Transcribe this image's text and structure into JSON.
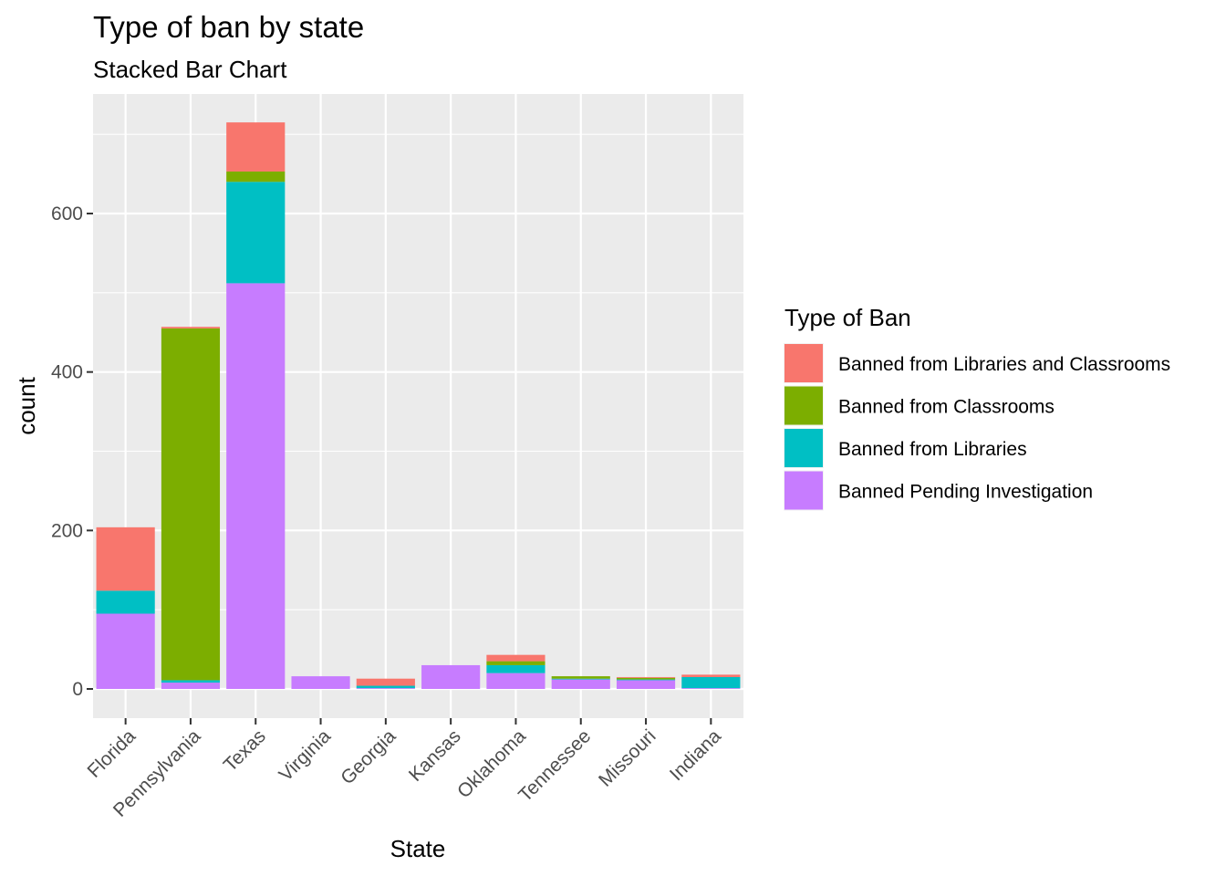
{
  "chart_data": {
    "type": "bar",
    "stacked": true,
    "title": "Type of ban by state",
    "subtitle": "Stacked Bar Chart",
    "xlabel": "State",
    "ylabel": "count",
    "ylim": [
      -35,
      750
    ],
    "yticks": [
      0,
      200,
      400,
      600
    ],
    "grid": true,
    "legend_position": "right",
    "legend_title": "Type of Ban",
    "categories": [
      "Florida",
      "Pennsylvania",
      "Texas",
      "Virginia",
      "Georgia",
      "Kansas",
      "Oklahoma",
      "Tennessee",
      "Missouri",
      "Indiana"
    ],
    "series": [
      {
        "name": "Banned Pending Investigation",
        "color": "#C77CFF",
        "values": [
          95,
          8,
          512,
          16,
          1,
          30,
          20,
          12,
          11,
          1
        ]
      },
      {
        "name": "Banned from Libraries",
        "color": "#00BFC4",
        "values": [
          29,
          3,
          128,
          0,
          3,
          0,
          10,
          1,
          1,
          14
        ]
      },
      {
        "name": "Banned from Classrooms",
        "color": "#7CAE00",
        "values": [
          0,
          444,
          13,
          0,
          0,
          0,
          5,
          3,
          2,
          0
        ]
      },
      {
        "name": "Banned from Libraries and Classrooms",
        "color": "#F8766D",
        "values": [
          80,
          2,
          62,
          0,
          9,
          0,
          8,
          0,
          1,
          3
        ]
      }
    ],
    "legend_order": [
      "Banned from Libraries and Classrooms",
      "Banned from Classrooms",
      "Banned from Libraries",
      "Banned Pending Investigation"
    ]
  }
}
